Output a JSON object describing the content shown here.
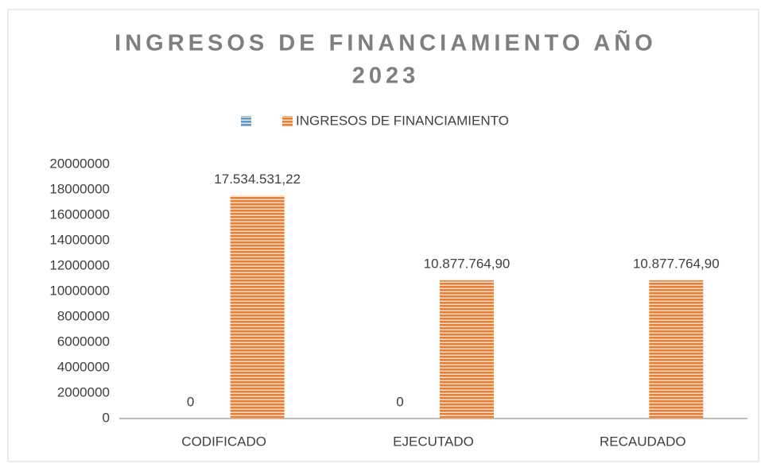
{
  "chart_data": {
    "type": "bar",
    "title_lines": [
      "INGRESOS DE FINANCIAMIENTO AÑO",
      "2023"
    ],
    "categories": [
      "CODIFICADO",
      "EJECUTADO",
      "RECAUDADO"
    ],
    "series": [
      {
        "color": "#5b9bd5",
        "values": [
          0,
          0,
          null
        ]
      },
      {
        "name": "INGRESOS DE FINANCIAMIENTO",
        "color": "#ed7d31",
        "values": [
          17534531.22,
          10877764.9,
          10877764.9
        ],
        "value_labels": [
          "17.534.531,22",
          "10.877.764,90",
          "10.877.764,90"
        ]
      }
    ],
    "ylim": [
      0,
      20000000
    ],
    "yticks": [
      0,
      2000000,
      4000000,
      6000000,
      8000000,
      10000000,
      12000000,
      14000000,
      16000000,
      18000000,
      20000000
    ],
    "legend": "top"
  }
}
